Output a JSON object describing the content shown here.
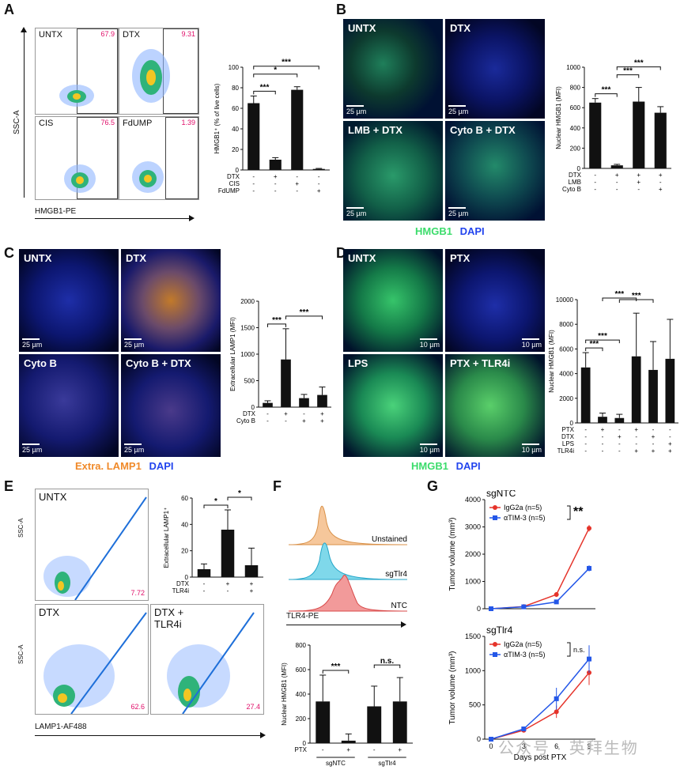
{
  "panels": {
    "A": {
      "label": "A",
      "facs": [
        {
          "name": "UNTX",
          "pct": "67.9"
        },
        {
          "name": "DTX",
          "pct": "9.31"
        },
        {
          "name": "CIS",
          "pct": "76.5"
        },
        {
          "name": "FdUMP",
          "pct": "1.39"
        }
      ],
      "yaxis": "SSC-A",
      "xaxis": "HMGB1-PE"
    },
    "B": {
      "label": "B",
      "images": [
        "UNTX",
        "DTX",
        "LMB + DTX",
        "Cyto B + DTX"
      ],
      "scale": "25 µm",
      "legend_a": "HMGB1",
      "legend_b": "DAPI"
    },
    "C": {
      "label": "C",
      "images": [
        "UNTX",
        "DTX",
        "Cyto B",
        "Cyto B + DTX"
      ],
      "scale": "25 µm",
      "legend_a": "Extra. LAMP1",
      "legend_b": "DAPI"
    },
    "D": {
      "label": "D",
      "images": [
        "UNTX",
        "PTX",
        "LPS",
        "PTX + TLR4i"
      ],
      "scale": "10 µm",
      "legend_a": "HMGB1",
      "legend_b": "DAPI"
    },
    "E": {
      "label": "E",
      "facs": [
        {
          "name": "UNTX",
          "pct": "7.72"
        },
        {
          "name": "DTX",
          "pct": "62.6"
        },
        {
          "name": "DTX + TLR4i",
          "pct": "27.4"
        }
      ],
      "yaxis": "SSC-A",
      "xaxis": "LAMP1-AF488"
    },
    "F": {
      "label": "F",
      "histogram_labels": [
        "Unstained",
        "sgTlr4",
        "NTC"
      ],
      "xaxis": "TLR4-PE"
    },
    "G": {
      "label": "G"
    }
  },
  "watermark": "公众号 · 英拜生物",
  "chart_data": [
    {
      "id": "A-bar",
      "type": "bar",
      "ylabel": "HMGB1⁺ (% of live cells)",
      "ylim": [
        0,
        100
      ],
      "yticks": [
        0,
        20,
        40,
        60,
        80,
        100
      ],
      "values": [
        65,
        10,
        78,
        1
      ],
      "errors": [
        7,
        2,
        3,
        0.5
      ],
      "conditions": [
        {
          "name": "DTX",
          "signs": [
            "-",
            "+",
            "-",
            "-"
          ]
        },
        {
          "name": "CIS",
          "signs": [
            "-",
            "-",
            "+",
            "-"
          ]
        },
        {
          "name": "FdUMP",
          "signs": [
            "-",
            "-",
            "-",
            "+"
          ]
        }
      ],
      "significance": [
        {
          "from": 0,
          "to": 1,
          "label": "***"
        },
        {
          "from": 0,
          "to": 2,
          "label": "*"
        },
        {
          "from": 0,
          "to": 3,
          "label": "***"
        }
      ]
    },
    {
      "id": "B-bar",
      "type": "bar",
      "ylabel": "Nuclear HMGB1 (MFI)",
      "ylim": [
        0,
        1000
      ],
      "yticks": [
        0,
        200,
        400,
        600,
        800,
        1000
      ],
      "values": [
        650,
        30,
        660,
        550
      ],
      "errors": [
        40,
        10,
        140,
        60
      ],
      "conditions": [
        {
          "name": "DTX",
          "signs": [
            "-",
            "+",
            "+",
            "+"
          ]
        },
        {
          "name": "LMB",
          "signs": [
            "-",
            "-",
            "+",
            "-"
          ]
        },
        {
          "name": "Cyto B",
          "signs": [
            "-",
            "-",
            "-",
            "+"
          ]
        }
      ],
      "significance": [
        {
          "from": 0,
          "to": 1,
          "label": "***"
        },
        {
          "from": 1,
          "to": 2,
          "label": "***"
        },
        {
          "from": 1,
          "to": 3,
          "label": "***"
        }
      ]
    },
    {
      "id": "C-bar",
      "type": "bar",
      "ylabel": "Extracellular LAMP1 (MFI)",
      "ylim": [
        0,
        2000
      ],
      "yticks": [
        0,
        500,
        1000,
        1500,
        2000
      ],
      "values": [
        80,
        900,
        170,
        230
      ],
      "errors": [
        40,
        580,
        70,
        150
      ],
      "conditions": [
        {
          "name": "DTX",
          "signs": [
            "-",
            "+",
            "-",
            "+"
          ]
        },
        {
          "name": "Cyto B",
          "signs": [
            "-",
            "-",
            "+",
            "+"
          ]
        }
      ],
      "significance": [
        {
          "from": 0,
          "to": 1,
          "label": "***"
        },
        {
          "from": 1,
          "to": 3,
          "label": "***"
        }
      ]
    },
    {
      "id": "D-bar",
      "type": "bar",
      "ylabel": "Nuclear HMGB1 (MFI)",
      "ylim": [
        0,
        10000
      ],
      "yticks": [
        0,
        2000,
        4000,
        6000,
        8000,
        10000
      ],
      "values": [
        4500,
        500,
        400,
        5400,
        4300,
        5200
      ],
      "errors": [
        1200,
        300,
        300,
        3500,
        2300,
        3200
      ],
      "conditions": [
        {
          "name": "PTX",
          "signs": [
            "-",
            "+",
            "-",
            "+",
            "-",
            "-"
          ]
        },
        {
          "name": "DTX",
          "signs": [
            "-",
            "-",
            "+",
            "-",
            "+",
            "-"
          ]
        },
        {
          "name": "LPS",
          "signs": [
            "-",
            "-",
            "-",
            "-",
            "-",
            "+"
          ]
        },
        {
          "name": "TLR4i",
          "signs": [
            "-",
            "-",
            "-",
            "+",
            "+",
            "+"
          ]
        }
      ],
      "significance": [
        {
          "from": 0,
          "to": 1,
          "label": "***"
        },
        {
          "from": 0,
          "to": 2,
          "label": "***"
        },
        {
          "from": 1,
          "to": 3,
          "label": "***"
        },
        {
          "from": 2,
          "to": 4,
          "label": "***"
        }
      ]
    },
    {
      "id": "E-bar",
      "type": "bar",
      "ylabel": "Extracellular LAMP1⁺",
      "ylim": [
        0,
        60
      ],
      "yticks": [
        0,
        20,
        40,
        60
      ],
      "values": [
        6,
        36,
        9
      ],
      "errors": [
        4,
        15,
        13
      ],
      "conditions": [
        {
          "name": "DTX",
          "signs": [
            "-",
            "+",
            "+"
          ]
        },
        {
          "name": "TLR4i",
          "signs": [
            "-",
            "-",
            "+"
          ]
        }
      ],
      "significance": [
        {
          "from": 0,
          "to": 1,
          "label": "*"
        },
        {
          "from": 1,
          "to": 2,
          "label": "*"
        }
      ]
    },
    {
      "id": "F-bar",
      "type": "bar",
      "ylabel": "Nuclear HMGB1 (MFI)",
      "ylim": [
        0,
        800
      ],
      "yticks": [
        0,
        200,
        400,
        600,
        800
      ],
      "values": [
        340,
        20,
        300,
        340
      ],
      "errors": [
        215,
        55,
        165,
        195
      ],
      "conditions": [
        {
          "name": "PTX",
          "signs": [
            "-",
            "+",
            "-",
            "+"
          ]
        }
      ],
      "groups": [
        {
          "label": "sgNTC",
          "bars": [
            0,
            1
          ]
        },
        {
          "label": "sgTlr4",
          "bars": [
            2,
            3
          ]
        }
      ],
      "significance": [
        {
          "from": 0,
          "to": 1,
          "label": "***"
        },
        {
          "from": 2,
          "to": 3,
          "label": "n.s."
        }
      ]
    },
    {
      "id": "G-top",
      "type": "line",
      "title": "sgNTC",
      "ylabel": "Tumor volume (mm³)",
      "ylim": [
        0,
        4000
      ],
      "yticks": [
        0,
        1000,
        2000,
        3000,
        4000
      ],
      "x": [
        0,
        3,
        6,
        9
      ],
      "series": [
        {
          "name": "IgG2a (n=5)",
          "color": "#e5332a",
          "values": [
            0,
            80,
            520,
            2950
          ],
          "errors": [
            0,
            20,
            90,
            120
          ]
        },
        {
          "name": "αTIM-3 (n=5)",
          "color": "#2457e8",
          "values": [
            0,
            70,
            250,
            1480
          ],
          "errors": [
            0,
            15,
            40,
            110
          ]
        }
      ],
      "significance": "**"
    },
    {
      "id": "G-bottom",
      "type": "line",
      "title": "sgTlr4",
      "ylabel": "Tumor volume (mm³)",
      "xlabel": "Days post PTX",
      "ylim": [
        0,
        1500
      ],
      "yticks": [
        0,
        500,
        1000,
        1500
      ],
      "x": [
        0,
        3,
        6,
        9
      ],
      "xticks": [
        "0",
        "3",
        "6",
        "9"
      ],
      "series": [
        {
          "name": "IgG2a (n=5)",
          "color": "#e5332a",
          "values": [
            0,
            130,
            400,
            970
          ],
          "errors": [
            0,
            30,
            90,
            180
          ]
        },
        {
          "name": "αTIM-3 (n=5)",
          "color": "#2457e8",
          "values": [
            0,
            150,
            590,
            1170
          ],
          "errors": [
            0,
            30,
            160,
            200
          ]
        }
      ],
      "significance": "n.s."
    }
  ]
}
